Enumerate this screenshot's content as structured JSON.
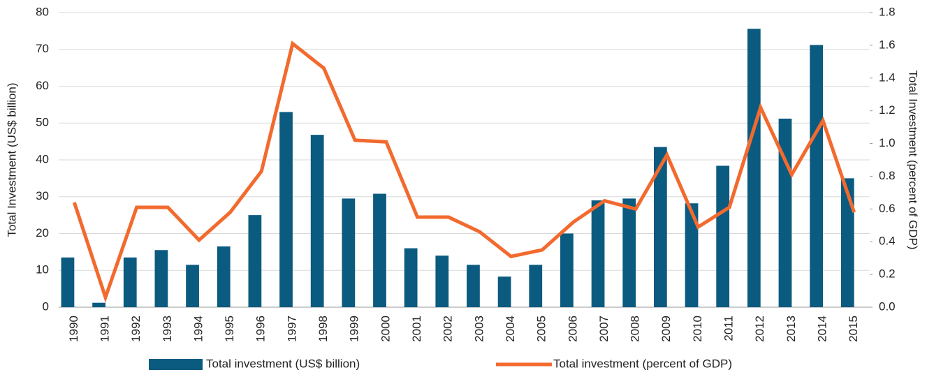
{
  "chart_data": {
    "type": "bar_line",
    "categories": [
      "1990",
      "1991",
      "1992",
      "1993",
      "1994",
      "1995",
      "1996",
      "1997",
      "1998",
      "1999",
      "2000",
      "2001",
      "2002",
      "2003",
      "2004",
      "2005",
      "2006",
      "2007",
      "2008",
      "2009",
      "2010",
      "2011",
      "2012",
      "2013",
      "2014",
      "2015"
    ],
    "series": [
      {
        "name": "Total investment (US$ billion)",
        "type": "bar",
        "color": "#0b5a80",
        "axis": "y",
        "values": [
          13.5,
          1.2,
          13.5,
          15.5,
          11.5,
          16.5,
          25,
          53,
          46.8,
          29.5,
          30.8,
          16,
          14,
          11.5,
          8.3,
          11.5,
          20,
          29,
          29.5,
          43.5,
          28.2,
          38.4,
          75.6,
          51.2,
          71.2,
          35
        ]
      },
      {
        "name": "Total investment (percent of GDP)",
        "type": "line",
        "color": "#f26a2e",
        "axis": "y2",
        "values": [
          0.64,
          0.06,
          0.61,
          0.61,
          0.41,
          0.58,
          0.83,
          1.61,
          1.46,
          1.02,
          1.01,
          0.55,
          0.55,
          0.46,
          0.31,
          0.35,
          0.52,
          0.65,
          0.6,
          0.93,
          0.49,
          0.61,
          1.22,
          0.81,
          1.14,
          0.58
        ]
      }
    ],
    "ylabel": "Total Investment (US$ billion)",
    "y2label": "Total Investment (percent of GDP)",
    "ylim": [
      0,
      80
    ],
    "yticks": [
      0,
      10,
      20,
      30,
      40,
      50,
      60,
      70,
      80
    ],
    "y2lim": [
      0,
      1.8
    ],
    "y2ticks": [
      {
        "value": 0,
        "label": "0.0"
      },
      {
        "value": 0.2,
        "label": "0.2"
      },
      {
        "value": 0.4,
        "label": "0.4"
      },
      {
        "value": 0.6,
        "label": "0.6"
      },
      {
        "value": 0.8,
        "label": "0.8"
      },
      {
        "value": 1,
        "label": "1.0"
      },
      {
        "value": 1.2,
        "label": "1.2"
      },
      {
        "value": 1.4,
        "label": "1.4"
      },
      {
        "value": 1.6,
        "label": "1.6"
      },
      {
        "value": 1.8,
        "label": "1.8"
      }
    ],
    "grid": true,
    "legend": "bottom"
  }
}
